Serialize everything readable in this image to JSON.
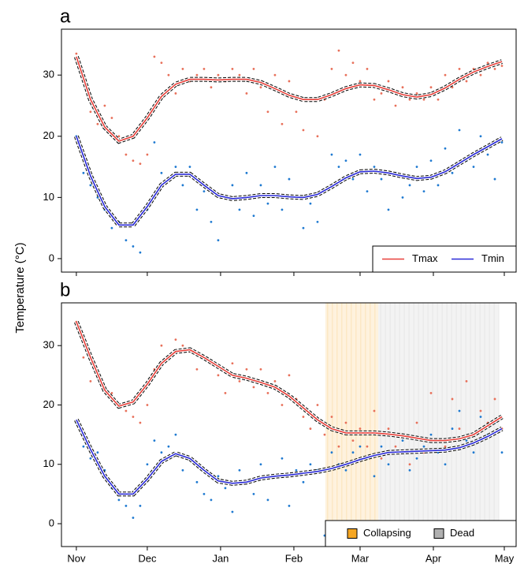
{
  "chart_data": [
    {
      "type": "scatter",
      "title": "a",
      "ylabel": "Temperature (°C)",
      "x": [
        0,
        3,
        6,
        9,
        12,
        15,
        18,
        21,
        24,
        27,
        30,
        33,
        36,
        39,
        42,
        45,
        48,
        51,
        54,
        57,
        60,
        63,
        66,
        69,
        72,
        75,
        78,
        81,
        84,
        87,
        90,
        93,
        96,
        99,
        102,
        105,
        108,
        111,
        114,
        117,
        120,
        123,
        126,
        129,
        132,
        135,
        138,
        141,
        144,
        147,
        150,
        153,
        156,
        159,
        162,
        165,
        168,
        171,
        174,
        177,
        180
      ],
      "series": [
        {
          "name": "Tmax",
          "color": "#e8705a",
          "line_color": "#e8403a",
          "values": [
            33.5,
            30,
            24,
            22,
            25,
            23,
            20,
            17,
            16,
            15.5,
            17,
            33,
            32,
            30,
            27,
            31,
            29,
            30,
            31,
            28,
            30,
            29,
            31,
            30,
            27,
            31,
            28,
            24,
            30,
            22,
            29,
            24,
            21,
            26,
            20,
            26,
            31,
            34,
            30,
            32,
            29,
            31,
            26,
            27,
            29,
            25,
            28,
            26,
            27,
            26,
            28,
            26,
            30,
            28,
            31,
            29,
            31,
            30,
            32,
            31,
            31.5
          ],
          "fit": [
            33,
            26,
            21.5,
            19.2,
            20,
            23,
            26.5,
            28.5,
            29.3,
            29.3,
            29.2,
            29.3,
            29.3,
            28.8,
            27.8,
            26.7,
            26,
            26,
            26.8,
            27.8,
            28.4,
            28.3,
            27.6,
            26.8,
            26.4,
            26.8,
            27.9,
            29.3,
            30.5,
            31.4,
            32.2
          ]
        },
        {
          "name": "Tmin",
          "color": "#1f7ad1",
          "line_color": "#2a2ad8",
          "values": [
            20,
            14,
            12,
            10,
            8,
            5,
            6,
            3,
            2,
            1,
            8,
            19,
            14,
            13,
            15,
            12,
            15,
            8,
            11,
            6,
            3,
            10,
            12,
            8,
            14,
            7,
            12,
            9,
            15,
            8,
            13,
            10,
            5,
            9,
            6,
            11,
            17,
            15,
            16,
            13,
            17,
            11,
            15,
            13,
            8,
            14,
            10,
            12,
            15,
            11,
            16,
            12,
            18,
            14,
            21,
            16,
            15,
            20,
            17,
            13,
            19
          ],
          "fit": [
            20,
            13.5,
            8.5,
            5.5,
            5.5,
            8.5,
            12,
            13.8,
            13.8,
            12,
            10.3,
            9.8,
            10,
            10.3,
            10.3,
            10.1,
            10,
            10.5,
            11.8,
            13.2,
            14.2,
            14.3,
            14,
            13.5,
            13.1,
            13.3,
            14.2,
            15.6,
            17,
            18.3,
            19.6
          ]
        }
      ],
      "fit_x": [
        0,
        6,
        12,
        18,
        24,
        30,
        36,
        42,
        48,
        54,
        60,
        66,
        72,
        78,
        84,
        90,
        96,
        102,
        108,
        114,
        120,
        126,
        132,
        138,
        144,
        150,
        156,
        162,
        168,
        174,
        180
      ],
      "xlim": [
        -6.3,
        186
      ],
      "ylim": [
        -2.2,
        37.5
      ],
      "xticks": [
        0,
        30,
        61,
        92,
        120,
        151,
        181
      ],
      "yticks": [
        0,
        10,
        20,
        30
      ],
      "legend": "lower right"
    },
    {
      "type": "scatter",
      "title": "b",
      "x": [
        0,
        3,
        6,
        9,
        12,
        15,
        18,
        21,
        24,
        27,
        30,
        33,
        36,
        39,
        42,
        45,
        48,
        51,
        54,
        57,
        60,
        63,
        66,
        69,
        72,
        75,
        78,
        81,
        84,
        87,
        90,
        93,
        96,
        99,
        102,
        105,
        108,
        111,
        114,
        117,
        120,
        123,
        126,
        129,
        132,
        135,
        138,
        141,
        144,
        147,
        150,
        153,
        156,
        159,
        162,
        165,
        168,
        171,
        174,
        177,
        180
      ],
      "series": [
        {
          "color": "#e8705a",
          "line_color": "#e8403a",
          "values": [
            34,
            28,
            24,
            25,
            23,
            22,
            20,
            19,
            18,
            17,
            20,
            26,
            30,
            28,
            31,
            30,
            29,
            26,
            28,
            27,
            25,
            22,
            27,
            24,
            26,
            23,
            26,
            22,
            24,
            20,
            25,
            21,
            18,
            16,
            20,
            15,
            18,
            13,
            17,
            14,
            16,
            13,
            19,
            11,
            16,
            13,
            15,
            10,
            17,
            12,
            22,
            14,
            13,
            21,
            16,
            24,
            15,
            19,
            17,
            21,
            16
          ],
          "fit": [
            34,
            28,
            22.5,
            19.8,
            20.5,
            23.5,
            27,
            29,
            29.3,
            28,
            26.5,
            25,
            24.5,
            23.8,
            23,
            21.5,
            19.5,
            17.5,
            16,
            15.3,
            15.3,
            15.3,
            15.1,
            14.8,
            14.4,
            14,
            14,
            14.3,
            15,
            16.5,
            18
          ]
        },
        {
          "color": "#1f7ad1",
          "line_color": "#2a2ad8",
          "values": [
            17,
            13,
            11,
            12,
            9,
            6,
            4,
            3,
            1,
            3,
            10,
            14,
            12,
            13,
            15,
            9,
            11,
            7,
            5,
            4,
            8,
            6,
            2,
            9,
            7,
            5,
            10,
            4,
            8,
            11,
            3,
            9,
            7,
            10,
            9,
            -2,
            12,
            10,
            9,
            12,
            13,
            11,
            8,
            13,
            10,
            12,
            14,
            9,
            11,
            13,
            15,
            12,
            10,
            16,
            19,
            14,
            12,
            18,
            15,
            17,
            12
          ],
          "fit": [
            17.5,
            12.5,
            8,
            5,
            5,
            7.5,
            10.5,
            11.8,
            11,
            9,
            7.2,
            6.8,
            7,
            7.7,
            8,
            8.2,
            8.5,
            8.8,
            9.3,
            10,
            10.8,
            11.5,
            12,
            12.1,
            12.2,
            12.3,
            12.4,
            12.8,
            13.6,
            14.7,
            16
          ]
        }
      ],
      "fit_x": [
        0,
        6,
        12,
        18,
        24,
        30,
        36,
        42,
        48,
        54,
        60,
        66,
        72,
        78,
        84,
        90,
        96,
        102,
        108,
        114,
        120,
        126,
        132,
        138,
        144,
        150,
        156,
        162,
        168,
        174,
        180
      ],
      "xlim": [
        -6.3,
        186
      ],
      "ylim": [
        -3.85,
        37.2
      ],
      "xticks": [
        {
          "value": 0,
          "label": "Nov"
        },
        {
          "value": 30,
          "label": "Dec"
        },
        {
          "value": 61,
          "label": "Jan"
        },
        {
          "value": 92,
          "label": "Feb"
        },
        {
          "value": 120,
          "label": "Mar"
        },
        {
          "value": 151,
          "label": "Apr"
        },
        {
          "value": 181,
          "label": "May"
        }
      ],
      "yticks": [
        0,
        10,
        20,
        30
      ],
      "regions": [
        {
          "name": "Collapsing",
          "color": "#f5a623",
          "range": [
            105.3,
            127.7
          ]
        },
        {
          "name": "Dead",
          "color": "#b0b0b0",
          "range": [
            127.7,
            178.7
          ]
        }
      ],
      "region_legend": "lower right"
    }
  ]
}
